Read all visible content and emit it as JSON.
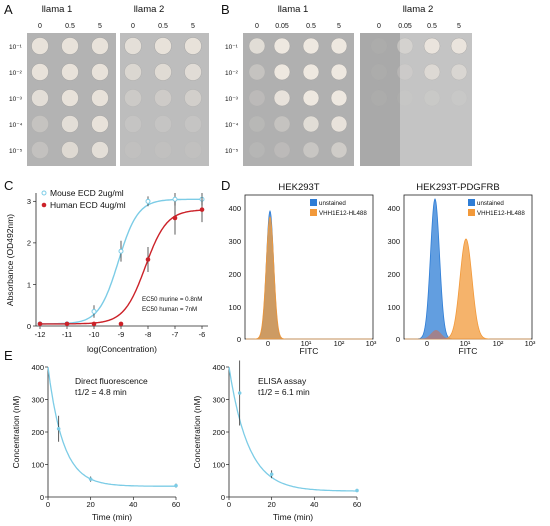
{
  "colors": {
    "mouse": "#7ccce6",
    "human": "#cc2229",
    "unstained": "#2e7dd6",
    "vhh": "#f2993a",
    "plate_bg": "#b9b9b9",
    "plate_dark": "#9a9a9a"
  },
  "panel_A": {
    "letter": "A",
    "groups": [
      {
        "title": "llama 1",
        "concentrations": [
          "0",
          "0.5",
          "5"
        ]
      },
      {
        "title": "llama 2",
        "concentrations": [
          "0",
          "0.5",
          "5"
        ]
      }
    ],
    "dilutions": [
      "10⁻¹",
      "10⁻²",
      "10⁻³",
      "10⁻⁴",
      "10⁻⁵"
    ]
  },
  "panel_B": {
    "letter": "B",
    "groups": [
      {
        "title": "llama 1",
        "concentrations": [
          "0",
          "0.05",
          "0.5",
          "5"
        ]
      },
      {
        "title": "llama 2",
        "concentrations": [
          "0",
          "0.05",
          "0.5",
          "5"
        ]
      }
    ],
    "dilutions": [
      "10⁻¹",
      "10⁻²",
      "10⁻³",
      "10⁻⁴",
      "10⁻⁵"
    ]
  },
  "panel_C": {
    "letter": "C",
    "xlabel": "log(Concentration)",
    "ylabel": "Absorbance (OD492nm)",
    "legend": [
      "Mouse ECD 2ug/ml",
      "Human ECD 4ug/ml"
    ],
    "notes": [
      "EC50 murine = 0.8nM",
      "EC50 human = 7nM"
    ],
    "x_ticks": [
      "-12",
      "-11",
      "-10",
      "-9",
      "-8",
      "-7",
      "-6"
    ],
    "y_ticks": [
      "0",
      "1",
      "2",
      "3"
    ]
  },
  "panel_D": {
    "letter": "D",
    "plots": [
      {
        "title": "HEK293T",
        "xlabel": "FITC",
        "legend": [
          "unstained",
          "VHH1E12-HL488"
        ]
      },
      {
        "title": "HEK293T-PDGFRB",
        "xlabel": "FITC",
        "legend": [
          "unstained",
          "VHH1E12-HL488"
        ]
      }
    ],
    "y_ticks": [
      "0",
      "100",
      "200",
      "300",
      "400"
    ],
    "x_ticks": [
      "0",
      "10¹",
      "10²",
      "10³"
    ]
  },
  "panel_E": {
    "letter": "E",
    "plots": [
      {
        "title": "Direct fluorescence",
        "subtitle": "t1/2 = 4.8 min",
        "xlabel": "Time (min)",
        "ylabel": "Concentration (nM)",
        "y_ticks": [
          "0",
          "100",
          "200",
          "300",
          "400"
        ],
        "x_ticks": [
          "0",
          "20",
          "40",
          "60"
        ]
      },
      {
        "title": "ELISA assay",
        "subtitle": "t1/2 = 6.1 min",
        "xlabel": "Time (min)",
        "ylabel": "Concentration (nM)",
        "y_ticks": [
          "0",
          "100",
          "200",
          "300",
          "400"
        ],
        "x_ticks": [
          "0",
          "20",
          "40",
          "60"
        ]
      }
    ]
  },
  "chart_data": [
    {
      "type": "line",
      "panel": "C",
      "xlabel": "log(Concentration)",
      "ylabel": "Absorbance (OD492nm)",
      "xlim": [
        -12,
        -6
      ],
      "ylim": [
        0,
        3.2
      ],
      "series": [
        {
          "name": "Mouse ECD 2ug/ml",
          "x": [
            -12,
            -11,
            -10,
            -9,
            -8,
            -7,
            -6
          ],
          "y": [
            0.05,
            0.05,
            0.35,
            1.8,
            3.0,
            3.05,
            3.05
          ],
          "err": [
            0,
            0,
            0.15,
            0.25,
            0.12,
            0.15,
            0.15
          ]
        },
        {
          "name": "Human ECD 4ug/ml",
          "x": [
            -12,
            -11,
            -10,
            -9,
            -8,
            -7,
            -6
          ],
          "y": [
            0.05,
            0.05,
            0.05,
            0.05,
            1.6,
            2.6,
            2.8
          ],
          "err": [
            0,
            0,
            0,
            0,
            0.3,
            0.4,
            0.3
          ]
        }
      ]
    },
    {
      "type": "line",
      "panel": "E",
      "title": "Direct fluorescence",
      "xlabel": "Time (min)",
      "ylabel": "Concentration (nM)",
      "xlim": [
        0,
        60
      ],
      "ylim": [
        0,
        400
      ],
      "series": [
        {
          "name": "",
          "x": [
            5,
            20,
            60
          ],
          "y": [
            210,
            55,
            35
          ],
          "err": [
            40,
            8,
            6
          ]
        }
      ]
    },
    {
      "type": "line",
      "panel": "E",
      "title": "ELISA assay",
      "xlabel": "Time (min)",
      "ylabel": "Concentration (nM)",
      "xlim": [
        0,
        60
      ],
      "ylim": [
        0,
        400
      ],
      "series": [
        {
          "name": "",
          "x": [
            5,
            20,
            60
          ],
          "y": [
            320,
            70,
            20
          ],
          "err": [
            100,
            12,
            5
          ]
        }
      ]
    }
  ]
}
